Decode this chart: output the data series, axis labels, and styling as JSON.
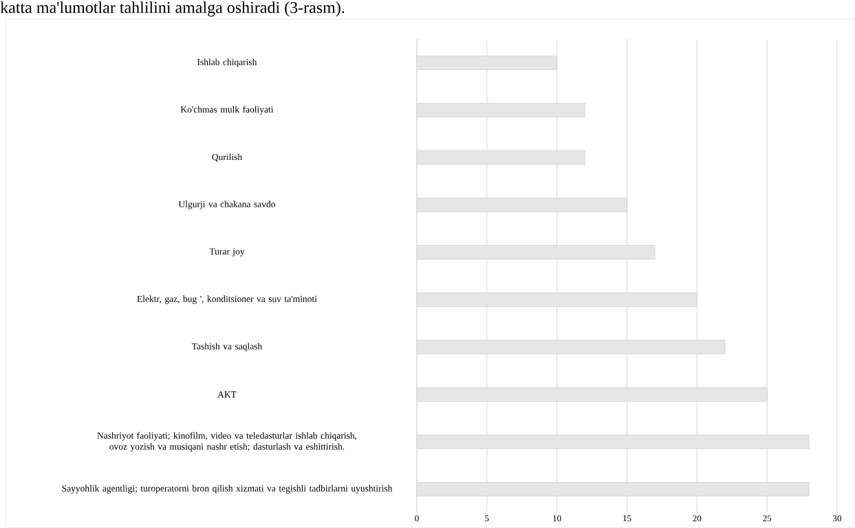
{
  "chart_data": {
    "type": "bar",
    "orientation": "horizontal",
    "title": "katta ma'lumotlar tahlilini amalga oshiradi (3-rasm).",
    "categories": [
      "Ishlab chiqarish",
      "Ko'chmas mulk faoliyati",
      "Qurilish",
      "Ulgurji va chakana savdo",
      "Turar joy",
      "Elektr, gaz, bug ', konditsioner va suv ta'minoti",
      "Tashish va saqlash",
      "AKT",
      "Nashriyot faoliyati; kinofilm, video va teledasturlar ishlab chiqarish, ovoz yozish va musiqani nashr etish; dasturlash va eshittirish.",
      "Sayyohlik agentligi; turoperatorni bron qilish xizmati va tegishli tadbirlarni uyushtirish"
    ],
    "values": [
      10,
      12,
      12,
      15,
      17,
      20,
      22,
      25,
      28,
      28
    ],
    "color": "#e6e6e6",
    "xlim": [
      0,
      30
    ],
    "xticks": [
      0,
      5,
      10,
      15,
      20,
      25,
      30
    ],
    "grid": "x"
  }
}
